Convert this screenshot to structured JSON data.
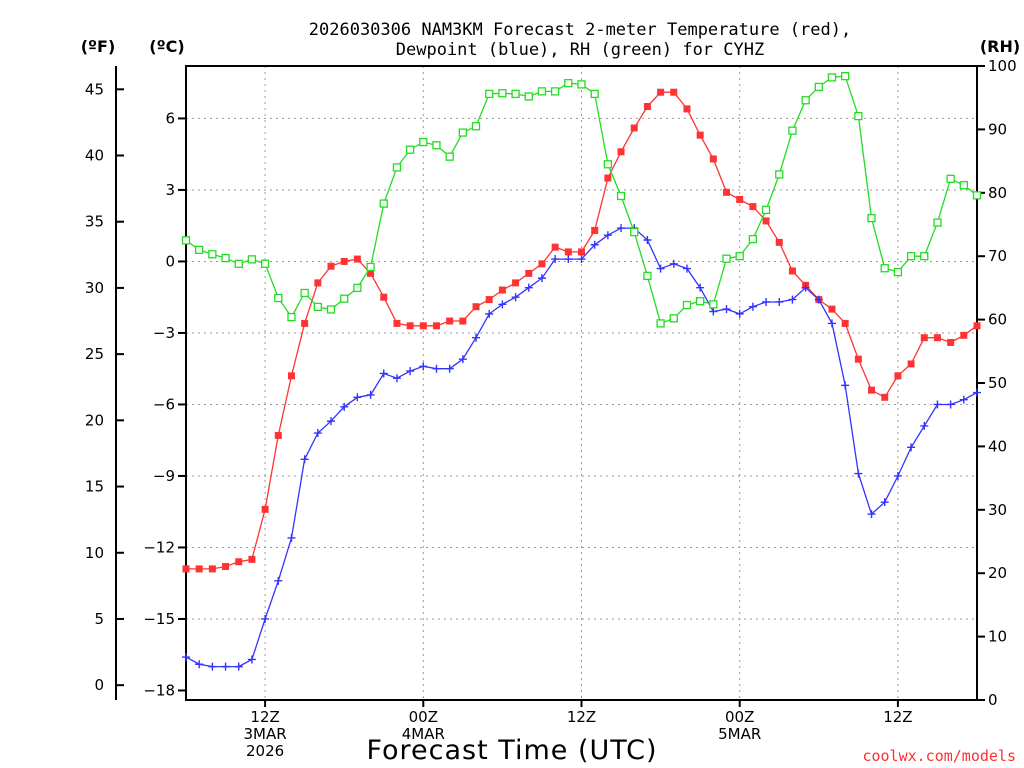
{
  "chart_data": {
    "type": "line",
    "title_line1": "2026030306 NAM3KM Forecast 2-meter Temperature (red),",
    "title_line2": "Dewpoint (blue), RH (green) for CYHZ",
    "xlabel": "Forecast Time (UTC)",
    "credit": "coolwx.com/models",
    "units": {
      "fahrenheit": "(ºF)",
      "celsius": "(ºC)",
      "rh": "(RH)"
    },
    "x_range_hours": [
      6,
      66
    ],
    "celsius_range": [
      -18.4,
      8.2
    ],
    "rh_range": [
      0,
      100
    ],
    "celsius_ticks": [
      {
        "value": 6,
        "label": "6"
      },
      {
        "value": 3,
        "label": "3"
      },
      {
        "value": 0,
        "label": "0"
      },
      {
        "value": -3,
        "label": "−3"
      },
      {
        "value": -6,
        "label": "−6"
      },
      {
        "value": -9,
        "label": "−9"
      },
      {
        "value": -12,
        "label": "−12"
      },
      {
        "value": -15,
        "label": "−15"
      },
      {
        "value": -18,
        "label": "−18"
      }
    ],
    "fahrenheit_ticks": [
      {
        "value": 45,
        "label": "45"
      },
      {
        "value": 40,
        "label": "40"
      },
      {
        "value": 35,
        "label": "35"
      },
      {
        "value": 30,
        "label": "30"
      },
      {
        "value": 25,
        "label": "25"
      },
      {
        "value": 20,
        "label": "20"
      },
      {
        "value": 15,
        "label": "15"
      },
      {
        "value": 10,
        "label": "10"
      },
      {
        "value": 5,
        "label": "5"
      },
      {
        "value": 0,
        "label": "0"
      }
    ],
    "rh_ticks": [
      {
        "value": 100,
        "label": "100"
      },
      {
        "value": 90,
        "label": "90"
      },
      {
        "value": 80,
        "label": "80"
      },
      {
        "value": 70,
        "label": "70"
      },
      {
        "value": 60,
        "label": "60"
      },
      {
        "value": 50,
        "label": "50"
      },
      {
        "value": 40,
        "label": "40"
      },
      {
        "value": 30,
        "label": "30"
      },
      {
        "value": 20,
        "label": "20"
      },
      {
        "value": 10,
        "label": "10"
      },
      {
        "value": 0,
        "label": "0"
      }
    ],
    "x_ticks": [
      {
        "hour": 12,
        "line1": "12Z",
        "line2": "3MAR",
        "line3": "2026"
      },
      {
        "hour": 24,
        "line1": "00Z",
        "line2": "4MAR",
        "line3": ""
      },
      {
        "hour": 36,
        "line1": "12Z",
        "line2": "",
        "line3": ""
      },
      {
        "hour": 48,
        "line1": "00Z",
        "line2": "5MAR",
        "line3": ""
      },
      {
        "hour": 60,
        "line1": "12Z",
        "line2": "",
        "line3": ""
      }
    ],
    "hours": [
      6,
      7,
      8,
      9,
      10,
      11,
      12,
      13,
      14,
      15,
      16,
      17,
      18,
      19,
      20,
      21,
      22,
      23,
      24,
      25,
      26,
      27,
      28,
      29,
      30,
      31,
      32,
      33,
      34,
      35,
      36,
      37,
      38,
      39,
      40,
      41,
      42,
      43,
      44,
      45,
      46,
      47,
      48,
      49,
      50,
      51,
      52,
      53,
      54,
      55,
      56,
      57,
      58,
      59,
      60,
      61,
      62,
      63,
      64,
      65,
      66
    ],
    "series": [
      {
        "name": "Temperature",
        "unit": "C",
        "color": "#ff3333",
        "marker": "filled-square",
        "values": [
          -12.9,
          -12.9,
          -12.9,
          -12.8,
          -12.6,
          -12.5,
          -10.4,
          -7.3,
          -4.8,
          -2.6,
          -0.9,
          -0.2,
          0.0,
          0.1,
          -0.5,
          -1.5,
          -2.6,
          -2.7,
          -2.7,
          -2.7,
          -2.5,
          -2.5,
          -1.9,
          -1.6,
          -1.2,
          -0.9,
          -0.5,
          -0.1,
          0.6,
          0.4,
          0.4,
          1.3,
          3.5,
          4.6,
          5.6,
          6.5,
          7.1,
          7.1,
          6.4,
          5.3,
          4.3,
          2.9,
          2.6,
          2.3,
          1.7,
          0.8,
          -0.4,
          -1.0,
          -1.6,
          -2.0,
          -2.6,
          -4.1,
          -5.4,
          -5.7,
          -4.8,
          -4.3,
          -3.2,
          -3.2,
          -3.4,
          -3.1,
          -2.7
        ]
      },
      {
        "name": "Dewpoint",
        "unit": "C",
        "color": "#3333ff",
        "marker": "plus",
        "values": [
          -16.6,
          -16.9,
          -17.0,
          -17.0,
          -17.0,
          -16.7,
          -15.0,
          -13.4,
          -11.6,
          -8.3,
          -7.2,
          -6.7,
          -6.1,
          -5.7,
          -5.6,
          -4.7,
          -4.9,
          -4.6,
          -4.4,
          -4.5,
          -4.5,
          -4.1,
          -3.2,
          -2.2,
          -1.8,
          -1.5,
          -1.1,
          -0.7,
          0.1,
          0.1,
          0.1,
          0.7,
          1.1,
          1.4,
          1.4,
          0.9,
          -0.3,
          -0.1,
          -0.3,
          -1.1,
          -2.1,
          -2.0,
          -2.2,
          -1.9,
          -1.7,
          -1.7,
          -1.6,
          -1.1,
          -1.6,
          -2.6,
          -5.2,
          -8.9,
          -10.6,
          -10.1,
          -9.0,
          -7.8,
          -6.9,
          -6.0,
          -6.0,
          -5.8,
          -5.5
        ]
      },
      {
        "name": "RH",
        "unit": "%",
        "color": "#22dd22",
        "marker": "open-square",
        "values": [
          72.5,
          71.0,
          70.3,
          69.7,
          68.8,
          69.5,
          68.8,
          63.4,
          60.4,
          64.2,
          62.0,
          61.6,
          63.3,
          65.0,
          68.3,
          78.3,
          84.0,
          86.8,
          88.0,
          87.5,
          85.7,
          89.5,
          90.5,
          95.6,
          95.7,
          95.6,
          95.2,
          96.0,
          96.0,
          97.3,
          97.1,
          95.6,
          84.5,
          79.5,
          73.8,
          66.9,
          59.4,
          60.2,
          62.3,
          62.9,
          62.4,
          69.6,
          70.0,
          72.7,
          77.3,
          82.9,
          89.8,
          94.6,
          96.7,
          98.2,
          98.4,
          92.1,
          76.0,
          68.1,
          67.5,
          70.0,
          70.0,
          75.3,
          82.2,
          81.2,
          79.6
        ]
      }
    ]
  }
}
